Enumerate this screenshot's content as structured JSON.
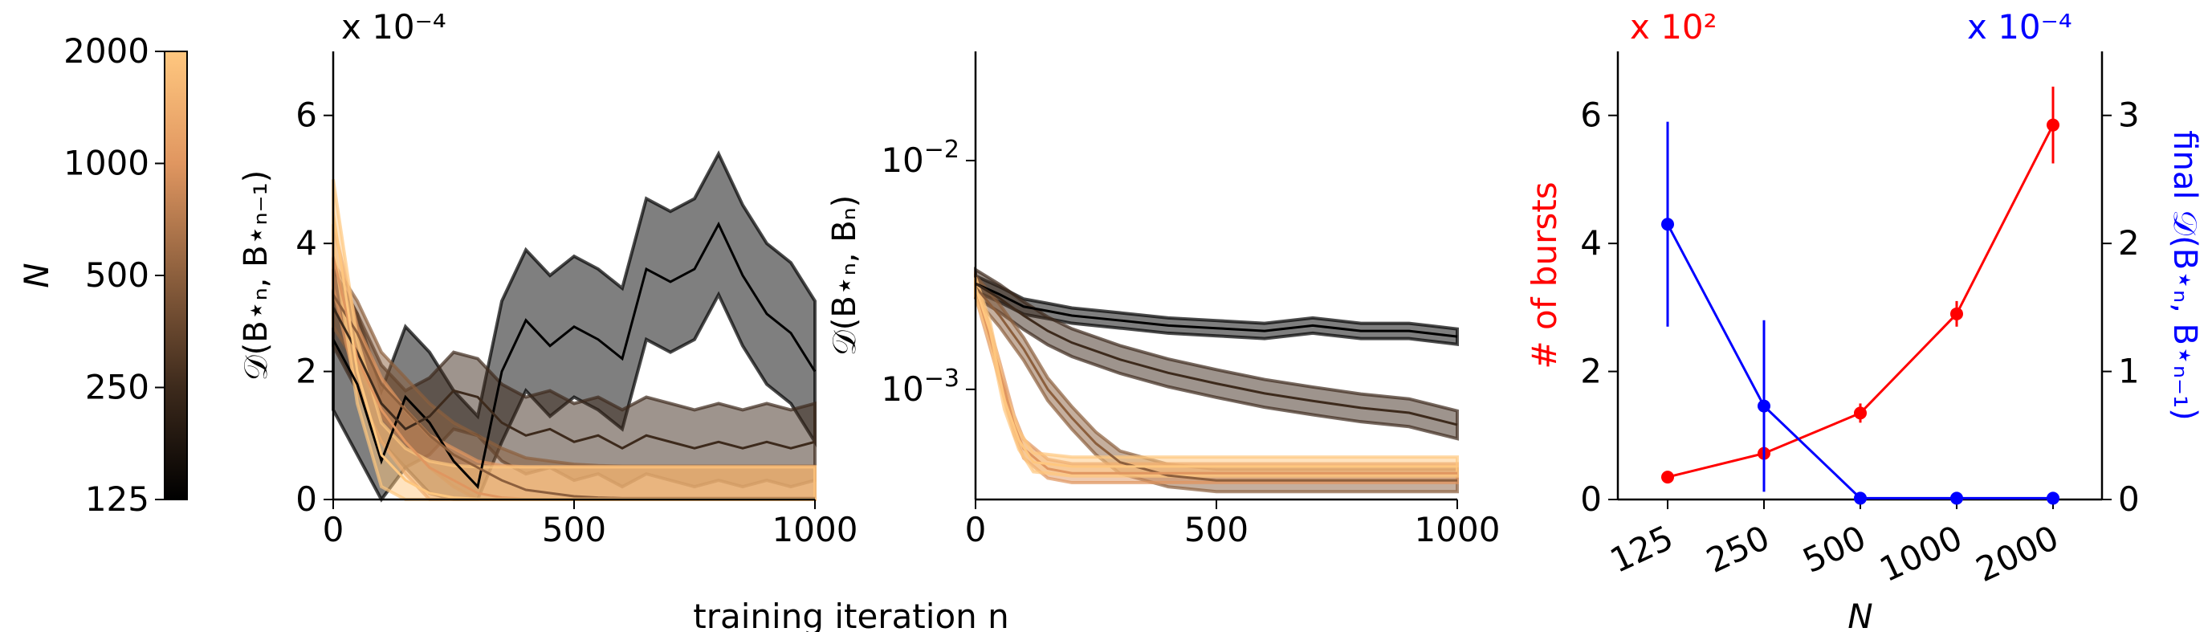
{
  "colors": {
    "axis": "#000000",
    "bursts": "#ff0000",
    "final": "#0000ff",
    "cmap_low": "#000000",
    "cmap_high": "#ffc77f"
  },
  "shared_xlabel": "training iteration n",
  "colorbar": {
    "label": "N",
    "ticks": [
      "125",
      "250",
      "500",
      "1000",
      "2000"
    ]
  },
  "chart_data": [
    {
      "id": "panel-1",
      "type": "line",
      "ylabel": "𝒟(B⋆ₙ, B⋆ₙ₋₁)",
      "multiplier": "x 10⁻⁴",
      "xlim": [
        0,
        1000
      ],
      "ylim": [
        0,
        7
      ],
      "xticks": [
        "0",
        "500",
        "1000"
      ],
      "yticks": [
        "0",
        "2",
        "4",
        "6"
      ],
      "series": [
        {
          "N": 125,
          "x": [
            0,
            50,
            100,
            150,
            200,
            250,
            300,
            350,
            400,
            450,
            500,
            550,
            600,
            650,
            700,
            750,
            800,
            850,
            900,
            950,
            1000
          ],
          "mean": [
            2.5,
            1.8,
            0.6,
            1.6,
            1.2,
            0.6,
            0.2,
            2.0,
            2.8,
            2.4,
            2.7,
            2.5,
            2.2,
            3.6,
            3.4,
            3.6,
            4.3,
            3.5,
            2.9,
            2.6,
            2.0
          ],
          "band": 1.1
        },
        {
          "N": 250,
          "x": [
            0,
            50,
            100,
            150,
            200,
            250,
            300,
            350,
            400,
            450,
            500,
            550,
            600,
            650,
            700,
            750,
            800,
            850,
            900,
            950,
            1000
          ],
          "mean": [
            3.0,
            2.3,
            1.5,
            1.1,
            1.3,
            1.7,
            1.6,
            1.2,
            1.0,
            1.1,
            0.9,
            1.0,
            0.8,
            1.0,
            0.9,
            0.8,
            0.9,
            0.8,
            0.9,
            0.8,
            0.9
          ],
          "band": 0.6
        },
        {
          "N": 500,
          "x": [
            0,
            50,
            100,
            150,
            200,
            250,
            300,
            350,
            400,
            450,
            500,
            550,
            600,
            650,
            700,
            750,
            800,
            850,
            900,
            950,
            1000
          ],
          "mean": [
            3.2,
            2.6,
            1.8,
            1.4,
            1.0,
            0.7,
            0.5,
            0.3,
            0.15,
            0.1,
            0.05,
            0.03,
            0.02,
            0.02,
            0.02,
            0.02,
            0.02,
            0.02,
            0.02,
            0.02,
            0.02
          ],
          "band": 0.5
        },
        {
          "N": 1000,
          "x": [
            0,
            50,
            100,
            150,
            200,
            250,
            300,
            350,
            400,
            450,
            500,
            550,
            600,
            650,
            700,
            750,
            800,
            850,
            900,
            950,
            1000
          ],
          "mean": [
            3.8,
            2.2,
            1.4,
            0.9,
            0.5,
            0.3,
            0.1,
            0.03,
            0.01,
            0.01,
            0.01,
            0.01,
            0.01,
            0.01,
            0.01,
            0.01,
            0.01,
            0.01,
            0.01,
            0.01,
            0.01
          ],
          "band": 0.5
        },
        {
          "N": 2000,
          "x": [
            0,
            50,
            100,
            150,
            200,
            250,
            300,
            350,
            400,
            450,
            500,
            550,
            600,
            650,
            700,
            750,
            800,
            850,
            900,
            950,
            1000
          ],
          "mean": [
            4.5,
            2.0,
            0.7,
            0.3,
            0.1,
            0.03,
            0.01,
            0.01,
            0.01,
            0.01,
            0.01,
            0.01,
            0.01,
            0.01,
            0.01,
            0.01,
            0.01,
            0.01,
            0.01,
            0.01,
            0.01
          ],
          "band": 0.5
        }
      ]
    },
    {
      "id": "panel-2",
      "type": "line",
      "ylabel": "𝒟(B⋆ₙ, Bₙ)",
      "yscale": "log",
      "xlim": [
        0,
        1000
      ],
      "ylim": [
        0.00033,
        0.03
      ],
      "xticks": [
        "0",
        "500",
        "1000"
      ],
      "yticks": [
        {
          "value": 0.01,
          "base": "10",
          "exp": "−2"
        },
        {
          "value": 0.001,
          "base": "10",
          "exp": "−3"
        }
      ],
      "series": [
        {
          "N": 125,
          "x": [
            0,
            50,
            100,
            150,
            200,
            300,
            400,
            500,
            600,
            700,
            800,
            900,
            1000
          ],
          "mean": [
            0.0029,
            0.0026,
            0.0023,
            0.0022,
            0.0021,
            0.002,
            0.0019,
            0.00185,
            0.0018,
            0.0019,
            0.0018,
            0.0018,
            0.0017
          ],
          "band_ratio": 1.08
        },
        {
          "N": 250,
          "x": [
            0,
            50,
            100,
            150,
            200,
            300,
            400,
            500,
            600,
            700,
            800,
            900,
            1000
          ],
          "mean": [
            0.0029,
            0.0025,
            0.0021,
            0.0018,
            0.0016,
            0.00135,
            0.00118,
            0.00106,
            0.00096,
            0.00089,
            0.00083,
            0.00079,
            0.0007
          ],
          "band_ratio": 1.15
        },
        {
          "N": 500,
          "x": [
            0,
            50,
            100,
            150,
            200,
            250,
            300,
            400,
            500,
            600,
            700,
            800,
            900,
            1000
          ],
          "mean": [
            0.0028,
            0.0021,
            0.0015,
            0.001,
            0.00075,
            0.00058,
            0.00048,
            0.00042,
            0.0004,
            0.0004,
            0.0004,
            0.0004,
            0.0004,
            0.0004
          ],
          "band_ratio": 1.12
        },
        {
          "N": 1000,
          "x": [
            0,
            50,
            80,
            100,
            150,
            200,
            300,
            400,
            500,
            600,
            700,
            800,
            900,
            1000
          ],
          "mean": [
            0.0028,
            0.0012,
            0.0007,
            0.00055,
            0.00045,
            0.00043,
            0.00043,
            0.00043,
            0.00043,
            0.00043,
            0.00043,
            0.00043,
            0.00043,
            0.00043
          ],
          "band_ratio": 1.1
        },
        {
          "N": 2000,
          "x": [
            0,
            30,
            60,
            90,
            120,
            200,
            300,
            400,
            500,
            600,
            700,
            800,
            900,
            1000
          ],
          "mean": [
            0.0028,
            0.0018,
            0.0009,
            0.0006,
            0.00048,
            0.00046,
            0.00046,
            0.00046,
            0.00046,
            0.00046,
            0.00046,
            0.00046,
            0.00046,
            0.00046
          ],
          "band_ratio": 1.1
        }
      ]
    },
    {
      "id": "panel-3",
      "type": "line",
      "xlabel": "N",
      "categories": [
        "125",
        "250",
        "500",
        "1000",
        "2000"
      ],
      "left_axis": {
        "label": "# of bursts",
        "multiplier": "x 10²",
        "ylim": [
          0,
          7
        ],
        "ticks": [
          "0",
          "2",
          "4",
          "6"
        ]
      },
      "right_axis": {
        "label": "final 𝒟(B⋆ₙ, B⋆ₙ₋₁)",
        "multiplier": "x 10⁻⁴",
        "ylim": [
          0,
          3.5
        ],
        "ticks": [
          "0",
          "1",
          "2",
          "3"
        ]
      },
      "series": [
        {
          "axis": "left",
          "values": [
            0.35,
            0.72,
            1.35,
            2.9,
            5.85
          ],
          "err": [
            0.05,
            0.1,
            0.15,
            0.2,
            0.6
          ]
        },
        {
          "axis": "right",
          "values": [
            2.15,
            0.73,
            0.01,
            0.01,
            0.01
          ],
          "err": [
            0.8,
            0.67,
            0.0,
            0.0,
            0.0
          ]
        }
      ]
    }
  ]
}
